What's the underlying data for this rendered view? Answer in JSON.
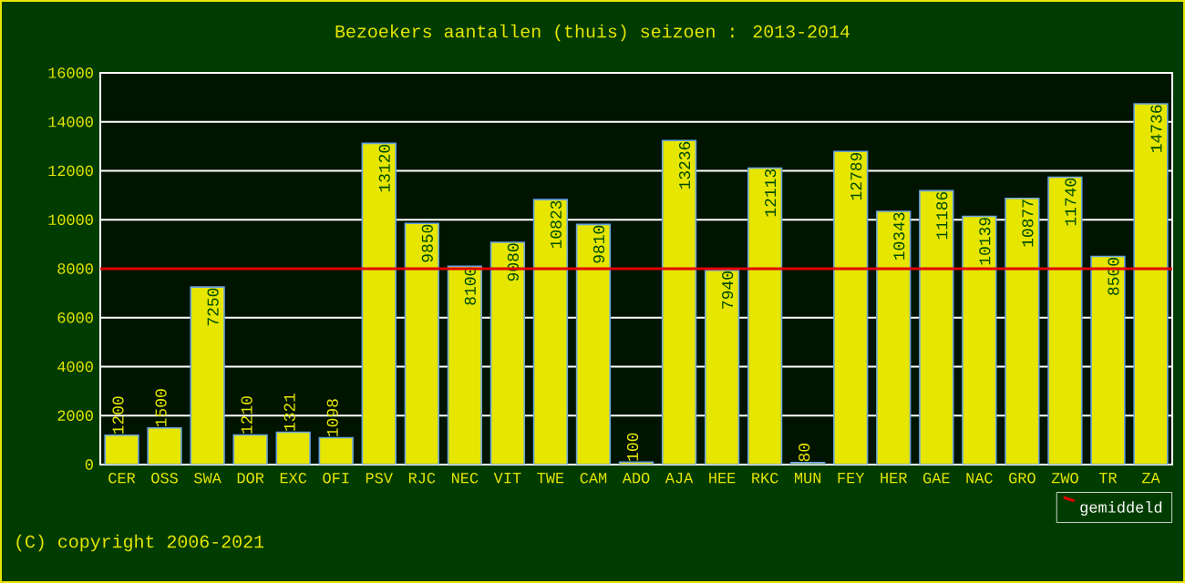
{
  "chart_data": {
    "type": "bar",
    "title": "Bezoekers aantallen (thuis) seizoen : 2013-2014",
    "categories": [
      "CER",
      "OSS",
      "SWA",
      "DOR",
      "EXC",
      "OFI",
      "PSV",
      "RJC",
      "NEC",
      "VIT",
      "TWE",
      "CAM",
      "ADO",
      "AJA",
      "HEE",
      "RKC",
      "MUN",
      "FEY",
      "HER",
      "GAE",
      "NAC",
      "GRO",
      "ZWO",
      "TR",
      "ZA"
    ],
    "values": [
      1200,
      1500,
      7250,
      1210,
      1321,
      1098,
      13120,
      9850,
      8100,
      9080,
      10823,
      9810,
      100,
      13236,
      7940,
      12113,
      80,
      12789,
      10343,
      11186,
      10139,
      10877,
      11740,
      8500,
      14736
    ],
    "color": "#e6e600",
    "ylim": [
      0,
      16000
    ],
    "yticks": [
      0,
      2000,
      4000,
      6000,
      8000,
      10000,
      12000,
      14000,
      16000
    ],
    "grid": "y",
    "data_labels": true,
    "legend": "bottom right",
    "ref_lines": [
      {
        "axis": "y",
        "value": 8000,
        "label": "gemiddeld",
        "color": "#e00000"
      }
    ],
    "annotations": [
      "(C) copyright 2006-2021"
    ]
  }
}
